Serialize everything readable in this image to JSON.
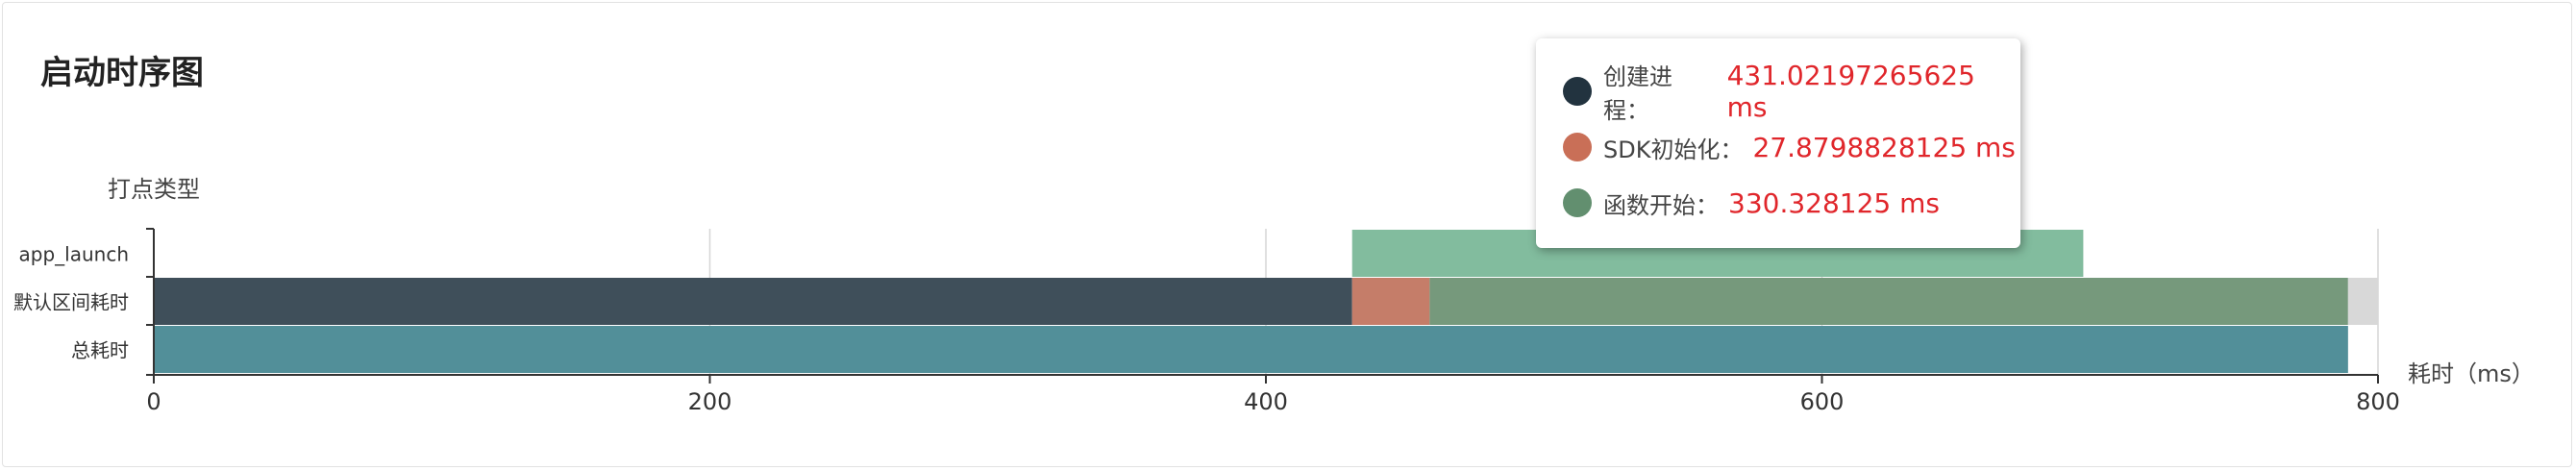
{
  "page": {
    "title": "启动时序图"
  },
  "tooltip": {
    "items": [
      {
        "name": "创建进程：",
        "value": "431.02197265625 ms",
        "color": "#22333f"
      },
      {
        "name": "SDK初始化：",
        "value": "27.8798828125 ms",
        "color": "#c96f57"
      },
      {
        "name": "函数开始：",
        "value": "330.328125 ms",
        "color": "#628f6f"
      }
    ]
  },
  "chart_data": {
    "type": "bar",
    "orientation": "horizontal",
    "ylabel": "打点类型",
    "xlabel": "耗时（ms）",
    "xlim": [
      0,
      800
    ],
    "xticks": [
      0,
      200,
      400,
      600,
      800
    ],
    "grid": true,
    "categories": [
      "app_launch",
      "默认区间耗时",
      "总耗时"
    ],
    "bars": [
      {
        "category": "app_launch",
        "segments": [
          {
            "start": 431.02,
            "end": 694,
            "color": "#82bc9e"
          }
        ]
      },
      {
        "category": "默认区间耗时",
        "segments": [
          {
            "name": "创建进程",
            "start": 0,
            "end": 431.02,
            "color": "#3f4f5a"
          },
          {
            "name": "SDK初始化",
            "start": 431.02,
            "end": 458.9,
            "color": "#c57d69"
          },
          {
            "name": "函数开始",
            "start": 458.9,
            "end": 789.23,
            "color": "#76997c"
          },
          {
            "start": 789.23,
            "end": 800,
            "color": "#d8d8d8"
          }
        ]
      },
      {
        "category": "总耗时",
        "segments": [
          {
            "start": 0,
            "end": 789.23,
            "color": "#528f99"
          }
        ]
      }
    ]
  }
}
